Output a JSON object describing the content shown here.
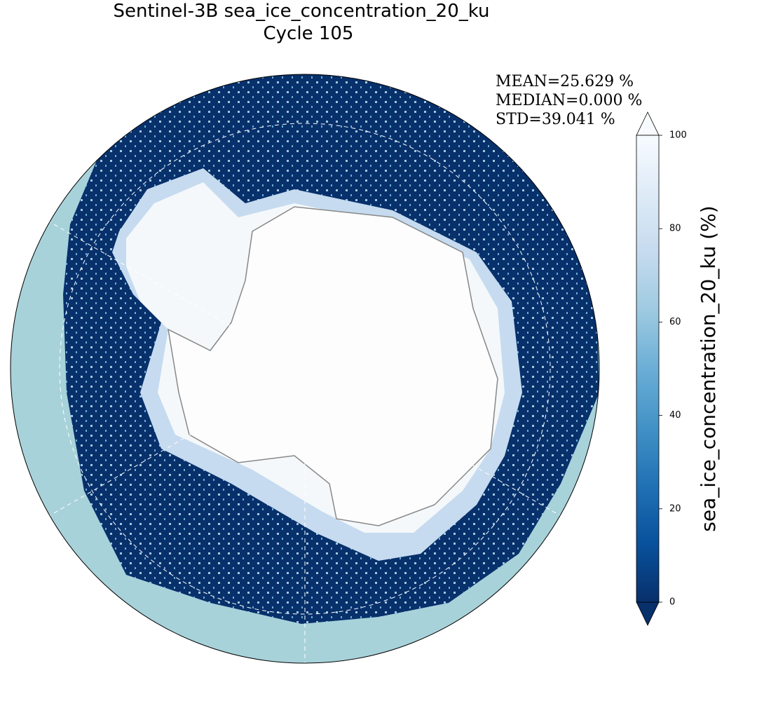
{
  "title": "Sentinel-3B sea_ice_concentration_20_ku",
  "subtitle": "Cycle 105",
  "stats": [
    "MEAN=25.629 %",
    "MEDIAN=0.000 %",
    "STD=39.041 %"
  ],
  "colorbar": {
    "label": "sea_ice_concentration_20_ku (%)",
    "range": [
      0,
      100
    ],
    "ticks": [
      0,
      20,
      40,
      60,
      80,
      100
    ]
  }
}
